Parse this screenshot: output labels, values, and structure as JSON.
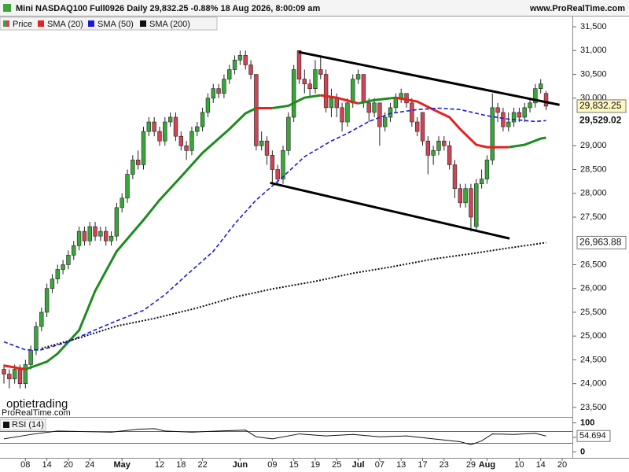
{
  "header": {
    "title": "Mini NASDAQ100 Full0926 Daily 29,832.25 -0.88% 18 Aug 2026, 8:00:09 am",
    "site": "www.ProRealTime.com"
  },
  "watermarks": [
    "optietrading",
    "ProRealTime.com"
  ],
  "chart_data": [
    {
      "type": "candlestick",
      "price_name": "Price",
      "up_color": "#3aa63a",
      "down_color": "#d04555",
      "categories": [
        null,
        null,
        null,
        null,
        "08",
        null,
        null,
        null,
        "14",
        null,
        null,
        null,
        "20",
        null,
        null,
        null,
        "24",
        null,
        null,
        null,
        null,
        null,
        "May",
        null,
        null,
        null,
        null,
        null,
        null,
        "12",
        null,
        null,
        null,
        "18",
        null,
        null,
        null,
        "22",
        null,
        null,
        null,
        null,
        null,
        null,
        "Jun",
        null,
        null,
        null,
        null,
        null,
        "09",
        null,
        null,
        null,
        "15",
        null,
        null,
        null,
        "19",
        null,
        null,
        null,
        "25",
        null,
        null,
        null,
        "Jul",
        null,
        null,
        null,
        "07",
        null,
        null,
        null,
        "13",
        null,
        null,
        null,
        "17",
        null,
        null,
        null,
        "23",
        null,
        null,
        null,
        null,
        "29",
        null,
        null,
        "Aug",
        null,
        null,
        null,
        null,
        null,
        "10",
        null,
        null,
        null,
        "14",
        null,
        null,
        null,
        "20"
      ],
      "open": [
        24300,
        24200,
        24100,
        24300,
        24000,
        24400,
        24700,
        25200,
        25500,
        26000,
        26200,
        26400,
        26500,
        26700,
        26900,
        27200,
        27000,
        27300,
        27100,
        27200,
        27000,
        27100,
        27700,
        27900,
        28400,
        28700,
        28600,
        29300,
        29500,
        29300,
        29100,
        29500,
        29600,
        29200,
        29000,
        28900,
        29300,
        29400,
        29700,
        30000,
        30200,
        30100,
        30400,
        30600,
        30800,
        30900,
        30700,
        30500,
        29000,
        29100,
        28800,
        28500,
        28300,
        28900,
        29600,
        31000,
        30400,
        30300,
        30200,
        30600,
        30500,
        29800,
        30000,
        29800,
        29500,
        29900,
        30400,
        30500,
        29900,
        29700,
        29900,
        29400,
        29600,
        29800,
        30000,
        30100,
        29900,
        29500,
        29700,
        29100,
        28800,
        28900,
        29100,
        29000,
        28600,
        28100,
        27800,
        28100,
        27300,
        28200,
        28300,
        28700,
        29800,
        29700,
        29400,
        29500,
        29700,
        29600,
        29800,
        29900,
        30200,
        30100,
        null,
        null,
        null
      ],
      "high": [
        24400,
        24300,
        24400,
        24400,
        24500,
        24800,
        25300,
        25600,
        26100,
        26300,
        26500,
        26600,
        26800,
        27000,
        27300,
        27300,
        27400,
        27400,
        27300,
        27300,
        27200,
        27800,
        28000,
        28500,
        28800,
        28900,
        29400,
        29600,
        29600,
        29400,
        29600,
        29700,
        29700,
        29300,
        29100,
        29400,
        29500,
        29800,
        30100,
        30300,
        30300,
        30500,
        30700,
        30900,
        31000,
        31000,
        30800,
        30500,
        29300,
        29200,
        28900,
        28600,
        29000,
        29700,
        30700,
        31000,
        30600,
        30400,
        30800,
        30900,
        30600,
        30200,
        30100,
        29900,
        30000,
        30500,
        30600,
        30500,
        30000,
        30000,
        29900,
        29700,
        29900,
        30100,
        30200,
        30100,
        30000,
        29600,
        29700,
        29200,
        29000,
        29200,
        29200,
        29100,
        28700,
        28200,
        28200,
        28200,
        28300,
        28500,
        28800,
        30100,
        29900,
        29800,
        29700,
        29800,
        29800,
        29900,
        30000,
        30300,
        30400,
        30150,
        null,
        null,
        null
      ],
      "low": [
        24000,
        23900,
        24000,
        23900,
        23900,
        24300,
        24600,
        25100,
        25400,
        25900,
        26100,
        26300,
        26400,
        26600,
        26800,
        26900,
        26900,
        27000,
        27000,
        26900,
        26900,
        27000,
        27600,
        27800,
        28300,
        28500,
        28500,
        29200,
        29200,
        29000,
        29000,
        29400,
        29100,
        28900,
        28700,
        28800,
        29200,
        29300,
        29600,
        29900,
        30000,
        30000,
        30300,
        30500,
        30700,
        30600,
        30400,
        28900,
        28900,
        28600,
        28200,
        28200,
        28200,
        28800,
        29500,
        30300,
        30100,
        30000,
        30100,
        30400,
        29700,
        29600,
        29600,
        29300,
        29400,
        29800,
        30300,
        29800,
        29500,
        29600,
        29000,
        29300,
        29500,
        29700,
        29900,
        29800,
        29400,
        29200,
        29000,
        28400,
        28600,
        28800,
        28900,
        28500,
        27900,
        27700,
        27700,
        27200,
        27200,
        28100,
        28200,
        28600,
        29500,
        29300,
        29300,
        29400,
        29500,
        29500,
        29700,
        29800,
        30100,
        29750,
        null,
        null,
        null
      ],
      "close": [
        24200,
        24100,
        24300,
        24000,
        24400,
        24700,
        25200,
        25500,
        26000,
        26200,
        26400,
        26500,
        26700,
        26900,
        27200,
        27000,
        27300,
        27100,
        27200,
        27000,
        27100,
        27700,
        27900,
        28400,
        28700,
        28600,
        29300,
        29500,
        29300,
        29100,
        29500,
        29600,
        29200,
        29000,
        28900,
        29300,
        29400,
        29700,
        30000,
        30200,
        30100,
        30400,
        30600,
        30800,
        30900,
        30700,
        30500,
        29000,
        29100,
        28800,
        28500,
        28300,
        28900,
        29600,
        30600,
        30400,
        30300,
        30200,
        30600,
        30500,
        29800,
        30000,
        29800,
        29500,
        29900,
        30400,
        30500,
        29900,
        29700,
        29900,
        29400,
        29600,
        29800,
        30000,
        30100,
        29900,
        29500,
        29300,
        29100,
        28800,
        28900,
        29100,
        29000,
        28600,
        28100,
        27800,
        28100,
        27500,
        28200,
        28300,
        28700,
        29800,
        29700,
        29400,
        29500,
        29700,
        29600,
        29800,
        29900,
        30200,
        30300,
        29832.25,
        null,
        null,
        null
      ],
      "series": [
        {
          "name": "SMA (20)",
          "color": "#1e8c1e",
          "down_color": "#e8201e",
          "style": "solid",
          "x": [
            0,
            4,
            8,
            10,
            14,
            17,
            21,
            26,
            29,
            33,
            37,
            42,
            45,
            47,
            50,
            53,
            56,
            59,
            62,
            66,
            69,
            73,
            77,
            80,
            83,
            85,
            88,
            90,
            94,
            97,
            100,
            101
          ],
          "values": [
            24380,
            24300,
            24460,
            24630,
            25120,
            25950,
            26780,
            27440,
            27860,
            28350,
            28850,
            29350,
            29680,
            29790,
            29790,
            29840,
            30010,
            30060,
            30010,
            29890,
            29960,
            30010,
            29930,
            29760,
            29600,
            29350,
            29020,
            28970,
            28970,
            29020,
            29150,
            29170
          ]
        },
        {
          "name": "SMA (50)",
          "color": "#1a1adc",
          "style": "dashed",
          "x": [
            0,
            4,
            7,
            12,
            17,
            21,
            26,
            30,
            34,
            39,
            43,
            47,
            52,
            56,
            61,
            64,
            68,
            72,
            77,
            81,
            85,
            90,
            94,
            99,
            101
          ],
          "values": [
            24880,
            24710,
            24710,
            24880,
            25130,
            25320,
            25540,
            25870,
            26280,
            26780,
            27360,
            27860,
            28350,
            28770,
            29100,
            29260,
            29510,
            29680,
            29760,
            29790,
            29760,
            29630,
            29560,
            29510,
            29529.02
          ]
        },
        {
          "name": "SMA (200)",
          "color": "#111111",
          "style": "dotted",
          "x": [
            7,
            14,
            21,
            28,
            36,
            43,
            50,
            58,
            65,
            72,
            80,
            87,
            94,
            101
          ],
          "values": [
            24740,
            24960,
            25210,
            25370,
            25590,
            25820,
            25990,
            26150,
            26320,
            26450,
            26620,
            26730,
            26850,
            26963.88
          ]
        }
      ],
      "trendlines": [
        {
          "x": [
            54.9,
            103.5
          ],
          "y": [
            30970,
            29860
          ]
        },
        {
          "x": [
            49.6,
            94.2
          ],
          "y": [
            28220,
            27050
          ]
        }
      ],
      "ylim": [
        23300,
        31650
      ],
      "yticks": [
        {
          "value": 23500,
          "label": "23,500"
        },
        {
          "value": 24000,
          "label": "24,000"
        },
        {
          "value": 24500,
          "label": "24,500"
        },
        {
          "value": 25000,
          "label": "25,000"
        },
        {
          "value": 25500,
          "label": "25,500"
        },
        {
          "value": 26000,
          "label": "26,000"
        },
        {
          "value": 26500,
          "label": "26,500"
        },
        {
          "value": 27500,
          "label": "27,500"
        },
        {
          "value": 28000,
          "label": "28,000"
        },
        {
          "value": 28500,
          "label": "28,500"
        },
        {
          "value": 29000,
          "label": "29,000"
        },
        {
          "value": 30000,
          "label": "30,000"
        },
        {
          "value": 30500,
          "label": "30,500"
        },
        {
          "value": 31000,
          "label": "31,000"
        },
        {
          "value": 31500,
          "label": "31,500"
        }
      ],
      "last_labels": [
        {
          "value": 29832.25,
          "label": "29,832.25"
        },
        {
          "value": 29529.02,
          "label": "29,529.02"
        },
        {
          "value": 26963.88,
          "label": "26,963.88"
        }
      ]
    },
    {
      "type": "line",
      "name": "RSI (14)",
      "color": "#111111",
      "x": [
        0,
        5,
        10,
        15,
        20,
        25,
        28,
        30,
        35,
        40,
        45,
        47,
        50,
        55,
        60,
        65,
        70,
        75,
        80,
        85,
        87,
        89,
        91,
        95,
        99,
        101
      ],
      "values": [
        45,
        60,
        72,
        70,
        68,
        78,
        80,
        72,
        68,
        72,
        75,
        52,
        45,
        62,
        55,
        60,
        52,
        55,
        45,
        35,
        25,
        38,
        62,
        60,
        64,
        54.694
      ],
      "levels": [
        70,
        30
      ],
      "ylim": [
        -15,
        115
      ],
      "yticks": [
        0,
        50,
        100
      ]
    }
  ]
}
